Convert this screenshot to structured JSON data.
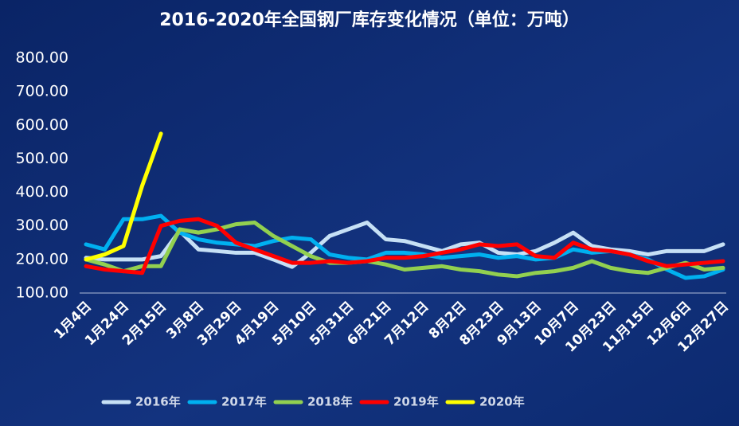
{
  "chart_data": {
    "type": "line",
    "title": "2016-2020年全国钢厂库存变化情况（单位：万吨）",
    "categories": [
      "1月4日",
      null,
      "1月24日",
      null,
      "2月15日",
      null,
      "3月8日",
      null,
      "3月29日",
      null,
      "4月19日",
      null,
      "5月10日",
      null,
      "5月31日",
      null,
      "6月21日",
      null,
      "7月12日",
      null,
      "8月2日",
      null,
      "8月23日",
      null,
      "9月13日",
      null,
      "10月7日",
      null,
      "10月23日",
      null,
      "11月15日",
      null,
      "12月6日",
      null,
      "12月27日"
    ],
    "series": [
      {
        "name": "2016年",
        "color": "#c6e0f5",
        "values": [
          205,
          200,
          200,
          200,
          210,
          285,
          230,
          225,
          220,
          220,
          200,
          178,
          220,
          270,
          290,
          310,
          260,
          255,
          240,
          225,
          245,
          250,
          220,
          215,
          225,
          250,
          280,
          240,
          230,
          225,
          215,
          225,
          225,
          225,
          245
        ]
      },
      {
        "name": "2017年",
        "color": "#00b0f0",
        "values": [
          245,
          230,
          320,
          320,
          330,
          280,
          260,
          250,
          245,
          240,
          255,
          265,
          260,
          215,
          205,
          200,
          220,
          220,
          215,
          205,
          210,
          215,
          205,
          210,
          200,
          205,
          230,
          220,
          225,
          215,
          200,
          170,
          145,
          150,
          170
        ]
      },
      {
        "name": "2018年",
        "color": "#92d050",
        "values": [
          200,
          185,
          165,
          180,
          180,
          290,
          280,
          290,
          305,
          310,
          270,
          240,
          210,
          190,
          190,
          195,
          185,
          170,
          175,
          180,
          170,
          165,
          155,
          150,
          160,
          165,
          175,
          195,
          175,
          165,
          160,
          175,
          190,
          170,
          175
        ]
      },
      {
        "name": "2019年",
        "color": "#ff0000",
        "values": [
          180,
          170,
          165,
          160,
          300,
          315,
          320,
          300,
          250,
          230,
          210,
          190,
          190,
          195,
          190,
          195,
          205,
          205,
          210,
          220,
          230,
          245,
          240,
          245,
          210,
          205,
          250,
          230,
          225,
          215,
          195,
          180,
          185,
          190,
          195
        ]
      },
      {
        "name": "2020年",
        "color": "#ffff00",
        "values": [
          200,
          215,
          240,
          420,
          575,
          null,
          null,
          null,
          null,
          null,
          null,
          null,
          null,
          null,
          null,
          null,
          null,
          null,
          null,
          null,
          null,
          null,
          null,
          null,
          null,
          null,
          null,
          null,
          null,
          null,
          null,
          null,
          null,
          null,
          null
        ]
      }
    ],
    "ylim": [
      100,
      800
    ],
    "yticks": [
      {
        "value": 100,
        "label": "100.00"
      },
      {
        "value": 200,
        "label": "200.00"
      },
      {
        "value": 300,
        "label": "300.00"
      },
      {
        "value": 400,
        "label": "400.00"
      },
      {
        "value": 500,
        "label": "500.00"
      },
      {
        "value": 600,
        "label": "600.00"
      },
      {
        "value": 700,
        "label": "700.00"
      },
      {
        "value": 800,
        "label": "800.00"
      }
    ],
    "legend": "bottom"
  }
}
